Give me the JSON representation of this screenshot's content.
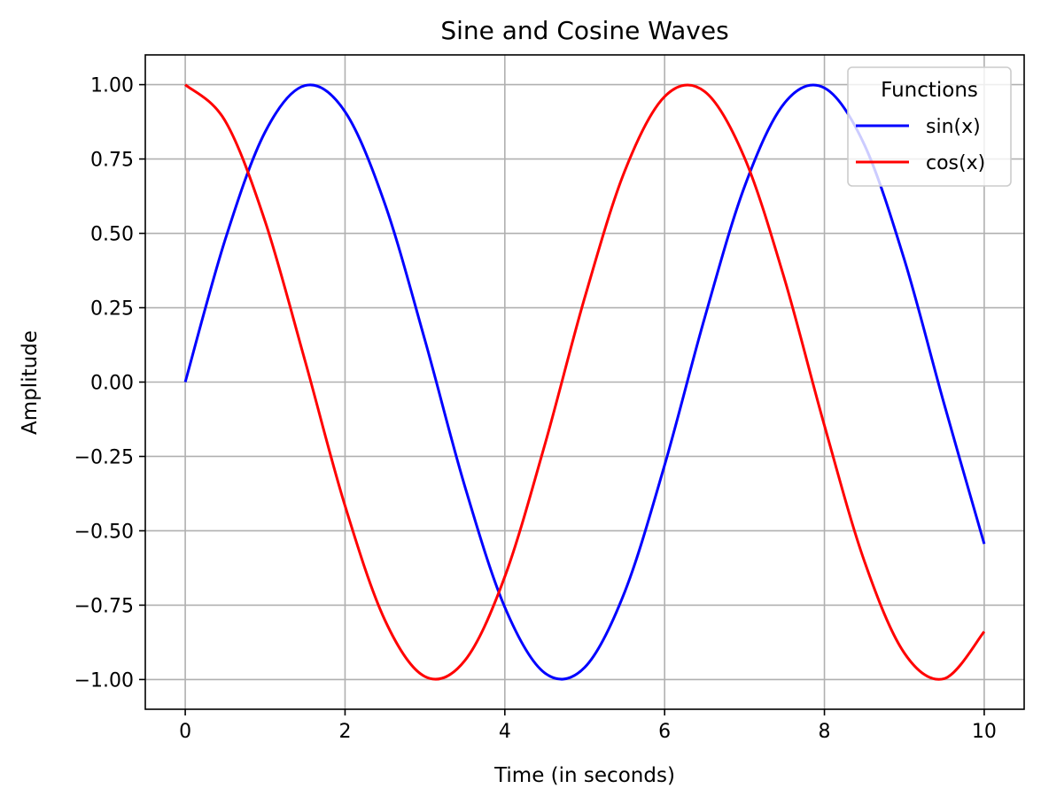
{
  "chart_data": {
    "type": "line",
    "title": "Sine and Cosine Waves",
    "xlabel": "Time (in seconds)",
    "ylabel": "Amplitude",
    "xlim": [
      -0.5,
      10.5
    ],
    "ylim": [
      -1.1,
      1.1
    ],
    "x_ticks": [
      0,
      2,
      4,
      6,
      8,
      10
    ],
    "x_tick_labels": [
      "0",
      "2",
      "4",
      "6",
      "8",
      "10"
    ],
    "y_ticks": [
      1.0,
      0.75,
      0.5,
      0.25,
      0.0,
      -0.25,
      -0.5,
      -0.75,
      -1.0
    ],
    "y_tick_labels": [
      "1.00",
      "0.75",
      "0.50",
      "0.25",
      "0.00",
      "−0.25",
      "−0.50",
      "−0.75",
      "−1.00"
    ],
    "grid": true,
    "legend": {
      "title": "Functions",
      "placement": "top-right"
    },
    "x": [
      0,
      0.5,
      1,
      1.5,
      2,
      2.5,
      3,
      3.5,
      4,
      4.5,
      5,
      5.5,
      6,
      6.5,
      7,
      7.5,
      8,
      8.5,
      9,
      9.5,
      10
    ],
    "series": [
      {
        "name": "sin(x)",
        "color": "#0000ff",
        "values": [
          0.0,
          0.479,
          0.841,
          0.997,
          0.909,
          0.598,
          0.141,
          -0.351,
          -0.757,
          -0.978,
          -0.959,
          -0.706,
          -0.279,
          0.215,
          0.657,
          0.938,
          0.989,
          0.798,
          0.412,
          -0.075,
          -0.544
        ]
      },
      {
        "name": "cos(x)",
        "color": "#ff0000",
        "values": [
          1.0,
          0.878,
          0.54,
          0.071,
          -0.416,
          -0.801,
          -0.99,
          -0.936,
          -0.654,
          -0.211,
          0.284,
          0.709,
          0.96,
          0.977,
          0.754,
          0.347,
          -0.146,
          -0.602,
          -0.911,
          -0.997,
          -0.839
        ]
      }
    ]
  }
}
